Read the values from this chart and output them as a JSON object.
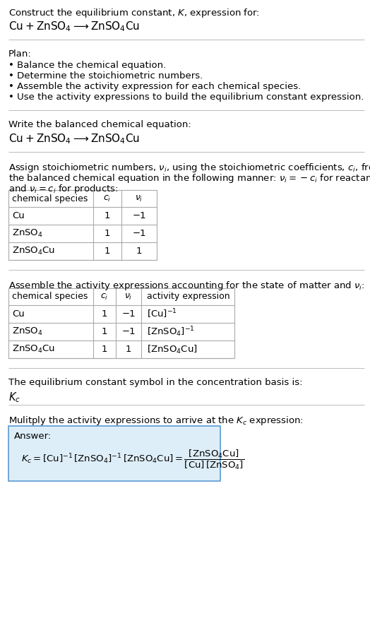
{
  "title_line1": "Construct the equilibrium constant, $K$, expression for:",
  "title_line2": "$\\mathrm{Cu + ZnSO_4 \\longrightarrow ZnSO_4Cu}$",
  "plan_header": "Plan:",
  "plan_bullets": [
    "• Balance the chemical equation.",
    "• Determine the stoichiometric numbers.",
    "• Assemble the activity expression for each chemical species.",
    "• Use the activity expressions to build the equilibrium constant expression."
  ],
  "balanced_eq_header": "Write the balanced chemical equation:",
  "balanced_eq": "$\\mathrm{Cu + ZnSO_4 \\longrightarrow ZnSO_4Cu}$",
  "stoich_intro1": "Assign stoichiometric numbers, $\\nu_i$, using the stoichiometric coefficients, $c_i$, from",
  "stoich_intro2": "the balanced chemical equation in the following manner: $\\nu_i = -c_i$ for reactants",
  "stoich_intro3": "and $\\nu_i = c_i$ for products:",
  "table1_headers": [
    "chemical species",
    "$c_i$",
    "$\\nu_i$"
  ],
  "table1_rows": [
    [
      "Cu",
      "1",
      "−1"
    ],
    [
      "$\\mathrm{ZnSO_4}$",
      "1",
      "−1"
    ],
    [
      "$\\mathrm{ZnSO_4Cu}$",
      "1",
      "1"
    ]
  ],
  "activity_intro": "Assemble the activity expressions accounting for the state of matter and $\\nu_i$:",
  "table2_headers": [
    "chemical species",
    "$c_i$",
    "$\\nu_i$",
    "activity expression"
  ],
  "table2_rows": [
    [
      "Cu",
      "1",
      "−1",
      "$[\\mathrm{Cu}]^{-1}$"
    ],
    [
      "$\\mathrm{ZnSO_4}$",
      "1",
      "−1",
      "$[\\mathrm{ZnSO_4}]^{-1}$"
    ],
    [
      "$\\mathrm{ZnSO_4Cu}$",
      "1",
      "1",
      "$[\\mathrm{ZnSO_4Cu}]$"
    ]
  ],
  "kc_intro": "The equilibrium constant symbol in the concentration basis is:",
  "kc_symbol": "$K_c$",
  "multiply_intro": "Mulitply the activity expressions to arrive at the $K_c$ expression:",
  "answer_label": "Answer:",
  "bg_color": "#ffffff",
  "answer_box_bg": "#deeef8",
  "answer_box_border": "#5b9bd5",
  "separator_color": "#bbbbbb",
  "table_line_color": "#aaaaaa",
  "text_color": "#000000",
  "font_size": 9.5,
  "fig_width": 5.24,
  "fig_height": 8.89,
  "dpi": 100
}
